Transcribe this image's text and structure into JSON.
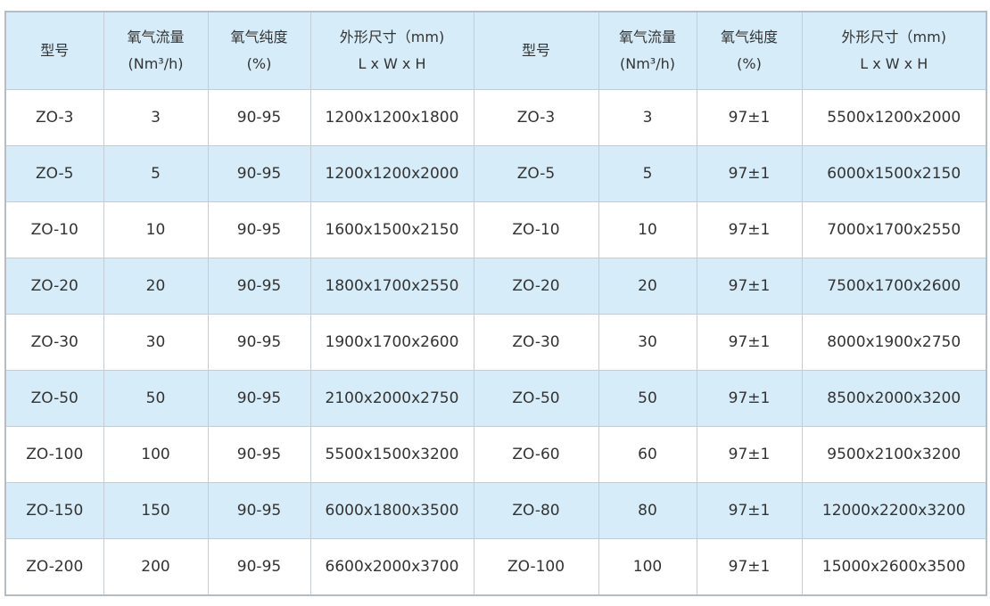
{
  "headers": [
    {
      "l1": "型号",
      "l2": ""
    },
    {
      "l1": "氧气流量",
      "l2": "(Nm³/h)"
    },
    {
      "l1": "氧气纯度",
      "l2": "(%)"
    },
    {
      "l1": "外形尺寸（mm)",
      "l2": "L x W x H"
    },
    {
      "l1": "型号",
      "l2": ""
    },
    {
      "l1": "氧气流量",
      "l2": "(Nm³/h)"
    },
    {
      "l1": "氧气纯度",
      "l2": "(%)"
    },
    {
      "l1": "外形尺寸（mm)",
      "l2": "L x W x H"
    }
  ],
  "rows": [
    [
      "ZO-3",
      "3",
      "90-95",
      "1200x1200x1800",
      "ZO-3",
      "3",
      "97±1",
      "5500x1200x2000"
    ],
    [
      "ZO-5",
      "5",
      "90-95",
      "1200x1200x2000",
      "ZO-5",
      "5",
      "97±1",
      "6000x1500x2150"
    ],
    [
      "ZO-10",
      "10",
      "90-95",
      "1600x1500x2150",
      "ZO-10",
      "10",
      "97±1",
      "7000x1700x2550"
    ],
    [
      "ZO-20",
      "20",
      "90-95",
      "1800x1700x2550",
      "ZO-20",
      "20",
      "97±1",
      "7500x1700x2600"
    ],
    [
      "ZO-30",
      "30",
      "90-95",
      "1900x1700x2600",
      "ZO-30",
      "30",
      "97±1",
      "8000x1900x2750"
    ],
    [
      "ZO-50",
      "50",
      "90-95",
      "2100x2000x2750",
      "ZO-50",
      "50",
      "97±1",
      "8500x2000x3200"
    ],
    [
      "ZO-100",
      "100",
      "90-95",
      "5500x1500x3200",
      "ZO-60",
      "60",
      "97±1",
      "9500x2100x3200"
    ],
    [
      "ZO-150",
      "150",
      "90-95",
      "6000x1800x3500",
      "ZO-80",
      "80",
      "97±1",
      "12000x2200x3200"
    ],
    [
      "ZO-200",
      "200",
      "90-95",
      "6600x2000x3700",
      "ZO-100",
      "100",
      "97±1",
      "15000x2600x3500"
    ]
  ],
  "colors": {
    "header_bg": "#d6ecf8",
    "alt_row_bg": "#d6ecf8",
    "border": "#c4ccd4"
  }
}
